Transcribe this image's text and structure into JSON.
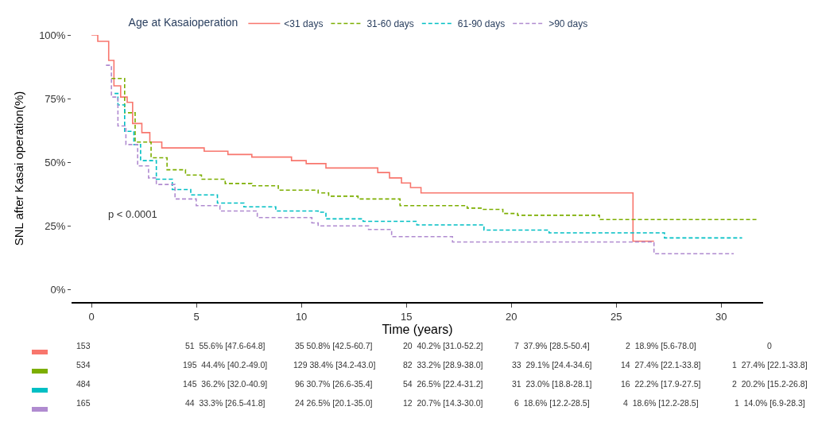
{
  "chart_data": {
    "type": "step",
    "legend_title": "Age at Kasaioperation",
    "xlabel": "Time (years)",
    "ylabel": "SNL after Kasai operation(%)",
    "xlim": [
      -0.95,
      32
    ],
    "ylim": [
      -5,
      100
    ],
    "xticks": [
      0,
      5,
      10,
      15,
      20,
      25,
      30
    ],
    "yticks": [
      {
        "value": 0,
        "label": "0%"
      },
      {
        "value": 25,
        "label": "25%"
      },
      {
        "value": 50,
        "label": "50%"
      },
      {
        "value": 75,
        "label": "75%"
      },
      {
        "value": 100,
        "label": "100%"
      }
    ],
    "grid": false,
    "legend": "top",
    "series": [
      {
        "name": "<31 days",
        "color": "#f8766d",
        "line_style": "solid",
        "x": [
          0,
          0.3,
          0.82,
          1.07,
          1.39,
          1.7,
          1.96,
          2.4,
          2.78,
          3.35,
          5.37,
          6.5,
          7.64,
          9.53,
          10.23,
          11.17,
          13.64,
          14.2,
          14.77,
          15.2,
          15.7,
          25.8,
          26.8
        ],
        "values": [
          100,
          97.5,
          90,
          80,
          75.6,
          73.5,
          65.2,
          61.6,
          57.9,
          55.6,
          54.3,
          53.0,
          52.0,
          50.6,
          49.4,
          47.7,
          45.9,
          43.8,
          41.8,
          40.0,
          37.9,
          18.9,
          18.9
        ]
      },
      {
        "name": "31-60 days",
        "color": "#7cae00",
        "line_style": "dashed",
        "x": [
          0.95,
          1.58,
          2.08,
          2.84,
          3.6,
          4.48,
          5.24,
          6.37,
          7.64,
          8.9,
          10.8,
          11.3,
          12.7,
          14.7,
          17.9,
          18.6,
          19.6,
          20.3,
          24.2,
          31.7
        ],
        "values": [
          82.9,
          69.4,
          57.9,
          51.7,
          47.0,
          44.9,
          43.3,
          41.6,
          40.7,
          39.0,
          37.9,
          36.6,
          35.5,
          32.9,
          31.9,
          31.4,
          29.8,
          29.1,
          27.4,
          27.4
        ]
      },
      {
        "name": "61-90 days",
        "color": "#00bfc4",
        "line_style": "dashed",
        "x": [
          1.1,
          1.26,
          1.58,
          2.02,
          2.34,
          3.09,
          3.85,
          4.73,
          6.0,
          7.26,
          8.78,
          10.8,
          11.17,
          12.94,
          15.5,
          18.7,
          21.8,
          27.3,
          31.0
        ],
        "values": [
          77.0,
          72.5,
          62.1,
          56.9,
          50.6,
          43.3,
          39.2,
          37.1,
          33.9,
          32.4,
          30.8,
          30.3,
          27.7,
          26.7,
          25.3,
          23.3,
          22.2,
          20.2,
          20.2
        ]
      },
      {
        "name": ">90 days",
        "color": "#b08bd0",
        "line_style": "dashed",
        "x": [
          0.69,
          0.95,
          1.26,
          1.64,
          2.2,
          2.72,
          3.09,
          3.98,
          4.99,
          6.12,
          7.9,
          10.5,
          10.8,
          13.2,
          14.3,
          17.2,
          26.8,
          30.6
        ],
        "values": [
          88.1,
          75.6,
          64.2,
          56.9,
          48.5,
          43.8,
          41.2,
          35.5,
          32.9,
          30.8,
          28.2,
          26.1,
          24.9,
          23.5,
          20.7,
          18.6,
          14.0,
          14.0
        ]
      }
    ],
    "annotations": [
      "p < 0.0001",
      "153",
      "51  55.6% [47.6-64.8]",
      "35 50.8% [42.5-60.7]",
      "20  40.2% [31.0-52.2]",
      "7  37.9% [28.5-50.4]",
      "2  18.9% [5.6-78.0]",
      "0",
      "534",
      "195  44.4% [40.2-49.0]",
      "129 38.4% [34.2-43.0]",
      "82  33.2% [28.9-38.0]",
      "33  29.1% [24.4-34.6]",
      "14  27.4% [22.1-33.8]",
      "1  27.4% [22.1-33.8]",
      "484",
      "145  36.2% [32.0-40.9]",
      "96 30.7% [26.6-35.4]",
      "54  26.5% [22.4-31.2]",
      "31  23.0% [18.8-28.1]",
      "16  22.2% [17.9-27.5]",
      "2  20.2% [15.2-26.8]",
      "165",
      "44  33.3% [26.5-41.8]",
      "24 26.5% [20.1-35.0]",
      "12  20.7% [14.3-30.0]",
      "6  18.6% [12.2-28.5]",
      "4  18.6% [12.2-28.5]",
      "1  14.0% [6.9-28.3]"
    ]
  }
}
